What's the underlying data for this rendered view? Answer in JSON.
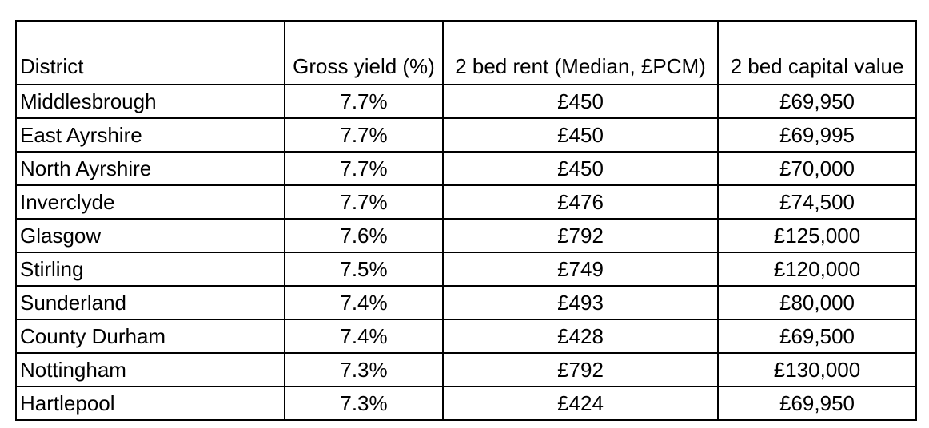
{
  "chart_data": {
    "type": "table",
    "columns": [
      "District",
      "Gross yield (%)",
      "2 bed rent (Median, £PCM)",
      "2 bed capital value"
    ],
    "rows": [
      [
        "Middlesbrough",
        "7.7%",
        "£450",
        "£69,950"
      ],
      [
        "East Ayrshire",
        "7.7%",
        "£450",
        "£69,995"
      ],
      [
        "North Ayrshire",
        "7.7%",
        "£450",
        "£70,000"
      ],
      [
        "Inverclyde",
        "7.7%",
        "£476",
        "£74,500"
      ],
      [
        "Glasgow",
        "7.6%",
        "£792",
        "£125,000"
      ],
      [
        "Stirling",
        "7.5%",
        "£749",
        "£120,000"
      ],
      [
        "Sunderland",
        "7.4%",
        "£493",
        "£80,000"
      ],
      [
        "County Durham",
        "7.4%",
        "£428",
        "£69,500"
      ],
      [
        "Nottingham",
        "7.3%",
        "£792",
        "£130,000"
      ],
      [
        "Hartlepool",
        "7.3%",
        "£424",
        "£69,950"
      ]
    ],
    "gross_yield_values": [
      7.7,
      7.7,
      7.7,
      7.7,
      7.6,
      7.5,
      7.4,
      7.4,
      7.3,
      7.3
    ],
    "rent_values_gbp_pcm": [
      450,
      450,
      450,
      476,
      792,
      749,
      493,
      428,
      792,
      424
    ],
    "capital_values_gbp": [
      69950,
      69995,
      70000,
      74500,
      125000,
      120000,
      80000,
      69500,
      130000,
      69950
    ],
    "layout": "grid on, header row bottom-aligned, first column left-aligned, other columns centered"
  },
  "colors": {
    "border": "#000000",
    "background": "#ffffff",
    "text": "#000000"
  }
}
